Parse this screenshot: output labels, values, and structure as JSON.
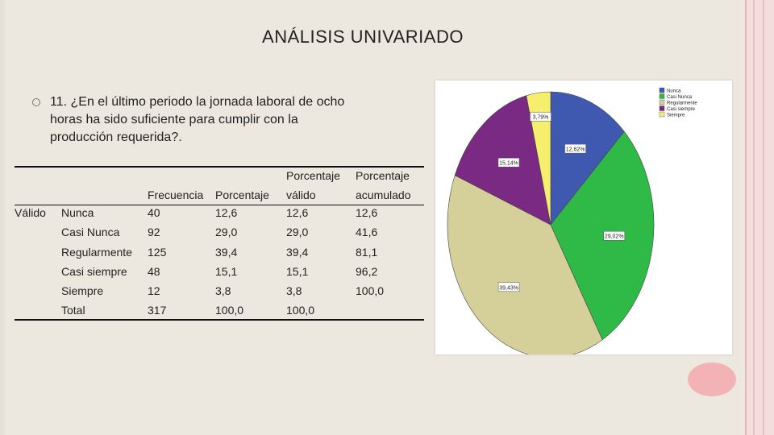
{
  "slide": {
    "title": "ANÁLISIS UNIVARIADO",
    "question": "11. ¿En el último periodo la jornada laboral de ocho horas ha sido suficiente para cumplir con la producción requerida?."
  },
  "table": {
    "headers": {
      "frecuencia": "Frecuencia",
      "porcentaje": "Porcentaje",
      "pv_line1": "Porcentaje",
      "pv_line2": "válido",
      "pa_line1": "Porcentaje",
      "pa_line2": "acumulado"
    },
    "group_label": "Válido",
    "rows": [
      {
        "label": "Nunca",
        "frecuencia": "40",
        "porcentaje": "12,6",
        "valido": "12,6",
        "acumulado": "12,6"
      },
      {
        "label": "Casi Nunca",
        "frecuencia": "92",
        "porcentaje": "29,0",
        "valido": "29,0",
        "acumulado": "41,6"
      },
      {
        "label": "Regularmente",
        "frecuencia": "125",
        "porcentaje": "39,4",
        "valido": "39,4",
        "acumulado": "81,1"
      },
      {
        "label": "Casi siempre",
        "frecuencia": "48",
        "porcentaje": "15,1",
        "valido": "15,1",
        "acumulado": "96,2"
      },
      {
        "label": "Siempre",
        "frecuencia": "12",
        "porcentaje": "3,8",
        "valido": "3,8",
        "acumulado": "100,0"
      },
      {
        "label": "Total",
        "frecuencia": "317",
        "porcentaje": "100,0",
        "valido": "100,0",
        "acumulado": ""
      }
    ]
  },
  "chart_data": {
    "type": "pie",
    "legend_placement": "top-right",
    "slices": [
      {
        "name": "Nunca",
        "value": 12.62,
        "label": "12,62%",
        "color": "#3f59b0"
      },
      {
        "name": "Casi Nunca",
        "value": 29.02,
        "label": "29,02%",
        "color": "#2fba48"
      },
      {
        "name": "Regularmente",
        "value": 39.43,
        "label": "39,43%",
        "color": "#d5cf9a"
      },
      {
        "name": "Casi siempre",
        "value": 15.14,
        "label": "15,14%",
        "color": "#7b2a83"
      },
      {
        "name": "Siempre",
        "value": 3.79,
        "label": "3,79%",
        "color": "#f6ef6e"
      }
    ]
  }
}
